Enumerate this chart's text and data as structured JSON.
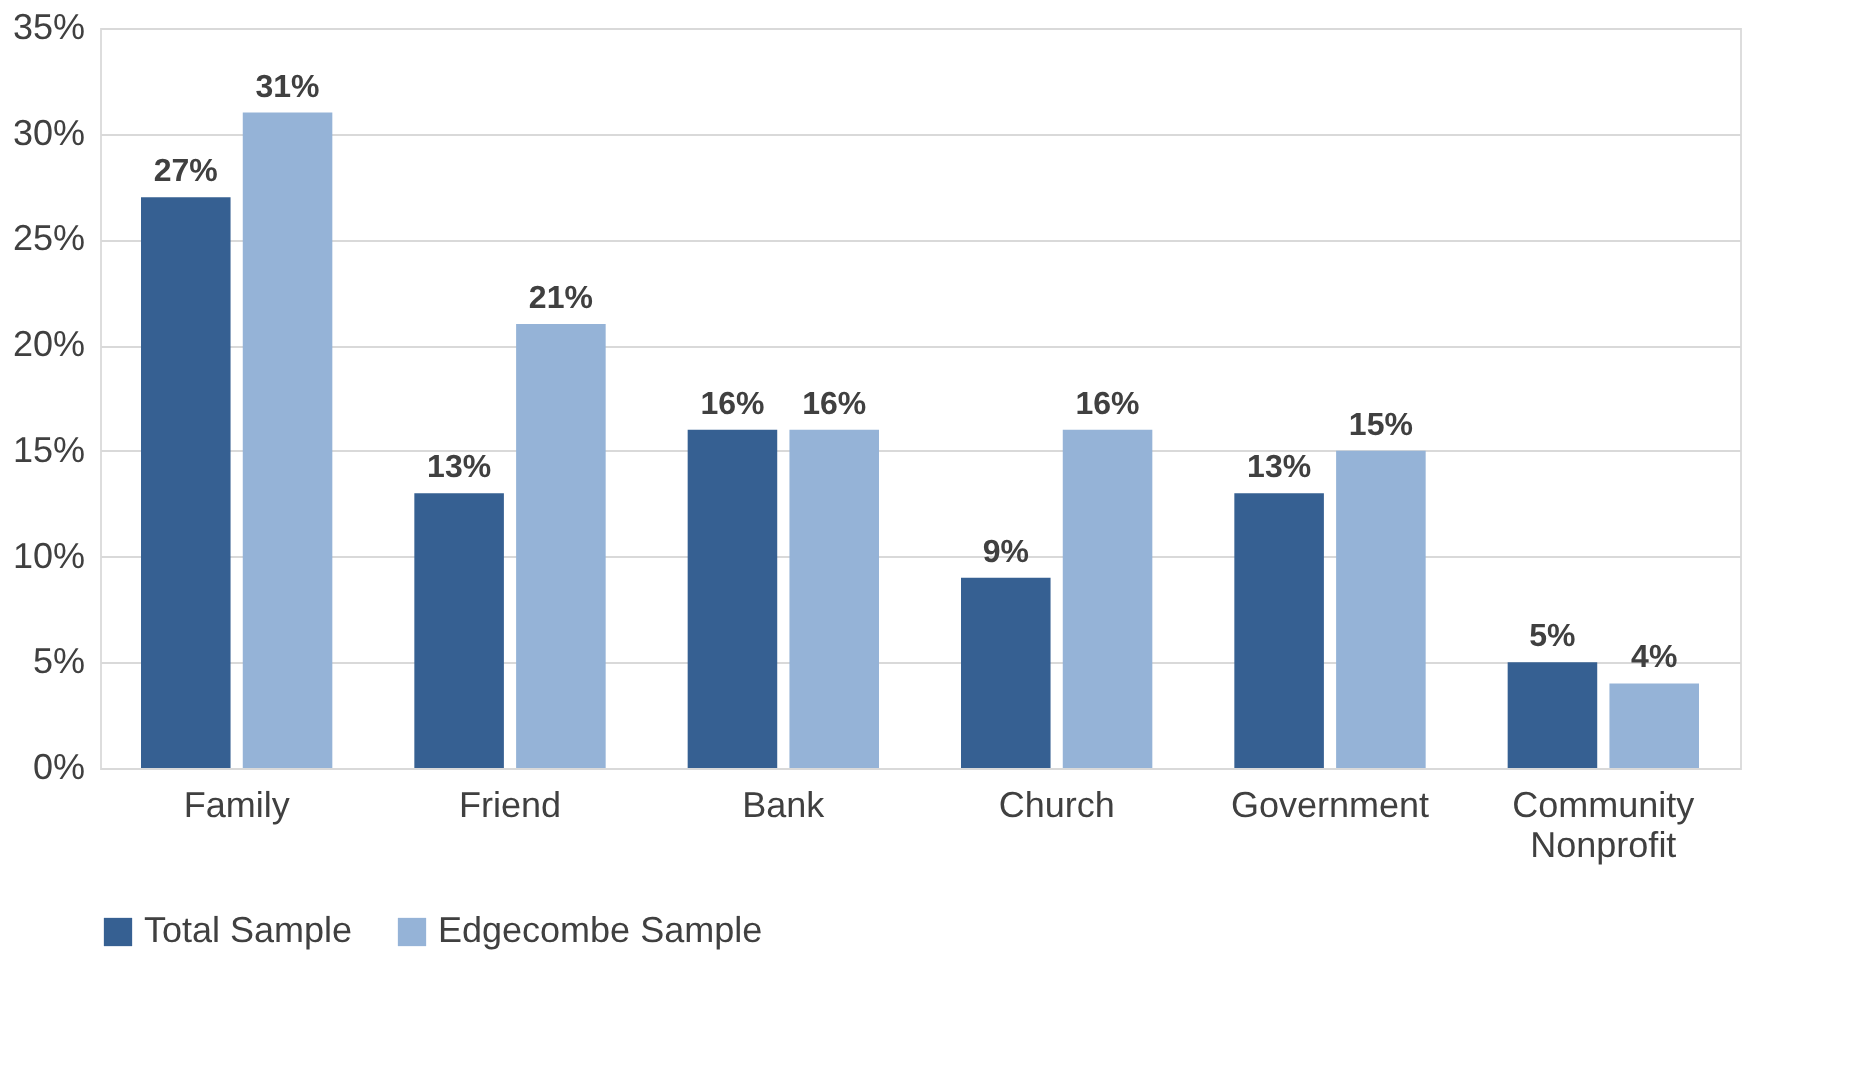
{
  "chart_data": {
    "type": "bar",
    "categories": [
      "Family",
      "Friend",
      "Bank",
      "Church",
      "Government",
      "Community Nonprofit"
    ],
    "series": [
      {
        "name": "Total Sample",
        "color": "#366092",
        "values": [
          27,
          13,
          16,
          9,
          13,
          5
        ],
        "value_labels": [
          "27%",
          "13%",
          "16%",
          "9%",
          "13%",
          "5%"
        ]
      },
      {
        "name": "Edgecombe Sample",
        "color": "#95b3d7",
        "values": [
          31,
          21,
          16,
          16,
          15,
          4
        ],
        "value_labels": [
          "31%",
          "21%",
          "16%",
          "16%",
          "15%",
          "4%"
        ]
      }
    ],
    "ylim": [
      0,
      35
    ],
    "yticks": [
      {
        "value": 0,
        "label": "0%"
      },
      {
        "value": 5,
        "label": "5%"
      },
      {
        "value": 10,
        "label": "10%"
      },
      {
        "value": 15,
        "label": "15%"
      },
      {
        "value": 20,
        "label": "20%"
      },
      {
        "value": 25,
        "label": "25%"
      },
      {
        "value": 30,
        "label": "30%"
      },
      {
        "value": 35,
        "label": "35%"
      }
    ],
    "grid": "y",
    "legend": "bottom"
  }
}
